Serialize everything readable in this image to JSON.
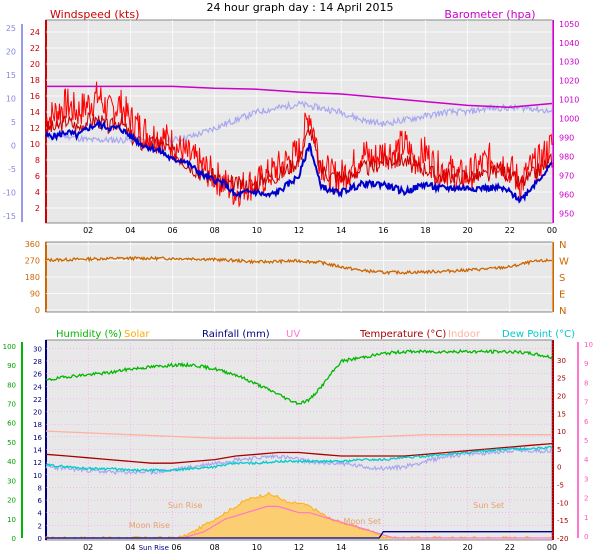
{
  "header": {
    "title": "24 hour graph day : 14 April 2015"
  },
  "colors": {
    "windspeed": "#cc0000",
    "gust": "#ff0000",
    "avg": "#0000cc",
    "barometer": "#cc00cc",
    "temp_light": "#a8a8f0",
    "direction": "#cc6600",
    "humidity": "#00b800",
    "solar": "#ffaa00",
    "rainfall": "#000080",
    "uv": "#ff77cc",
    "temperature": "#aa0000",
    "indoor": "#ffb0a0",
    "dewpoint": "#00cccc",
    "panel_bg": "#e8e8e8",
    "grid": "#ff88ff"
  },
  "chart_data": [
    {
      "type": "line",
      "panel": "wind",
      "left_label": "Windspeed (kts)",
      "right_label": "Barometer (hpa)",
      "x_ticks": [
        "02",
        "04",
        "06",
        "08",
        "10",
        "12",
        "14",
        "16",
        "18",
        "20",
        "22",
        "00"
      ],
      "left_ticks": [
        "2",
        "4",
        "6",
        "8",
        "10",
        "12",
        "14",
        "16",
        "18",
        "20",
        "22",
        "24"
      ],
      "outer_left_ticks": [
        "25",
        "20",
        "15",
        "10",
        "5",
        "0",
        "-5",
        "-10",
        "-15"
      ],
      "right_ticks": [
        "950",
        "960",
        "970",
        "980",
        "990",
        "1000",
        "1010",
        "1020",
        "1030",
        "1040",
        "1050"
      ],
      "ylim_left": [
        1,
        25
      ],
      "ylim_right": [
        945,
        1052
      ],
      "xlim": [
        0,
        24
      ],
      "series": [
        {
          "key": "gust",
          "x": [
            0,
            0.5,
            1,
            1.5,
            2,
            2.5,
            3,
            3.5,
            4,
            4.5,
            5,
            5.5,
            6,
            6.5,
            7,
            7.5,
            8,
            8.5,
            9,
            9.5,
            10,
            10.5,
            11,
            11.5,
            12,
            12.5,
            13,
            13.5,
            14,
            14.5,
            15,
            15.5,
            16,
            16.5,
            17,
            17.5,
            18,
            18.5,
            19,
            19.5,
            20,
            20.5,
            21,
            21.5,
            22,
            22.5,
            23,
            23.5,
            24
          ],
          "y": [
            13,
            14,
            15,
            14,
            15,
            16,
            14,
            15,
            13,
            12,
            11,
            11,
            10,
            9,
            8,
            7,
            6,
            5,
            4,
            5,
            5,
            6,
            7,
            8,
            9,
            14,
            8,
            6,
            6,
            7,
            9,
            8,
            9,
            9,
            10,
            8,
            9,
            7,
            7,
            6,
            6,
            7,
            8,
            8,
            7,
            5,
            7,
            8,
            10
          ]
        },
        {
          "key": "windspeed",
          "x": [
            0,
            0.5,
            1,
            1.5,
            2,
            2.5,
            3,
            3.5,
            4,
            4.5,
            5,
            5.5,
            6,
            6.5,
            7,
            7.5,
            8,
            8.5,
            9,
            9.5,
            10,
            10.5,
            11,
            11.5,
            12,
            12.5,
            13,
            13.5,
            14,
            14.5,
            15,
            15.5,
            16,
            16.5,
            17,
            17.5,
            18,
            18.5,
            19,
            19.5,
            20,
            20.5,
            21,
            21.5,
            22,
            22.5,
            23,
            23.5,
            24
          ],
          "y": [
            12,
            12,
            13,
            12,
            13,
            13,
            12,
            13,
            11,
            10,
            10,
            10,
            9,
            8,
            7,
            6,
            6,
            5,
            5,
            5,
            5,
            6,
            6,
            7,
            8,
            12,
            7,
            6,
            6,
            6,
            7,
            7,
            8,
            8,
            8,
            7,
            7,
            6,
            6,
            6,
            6,
            6,
            6,
            7,
            6,
            5,
            6,
            7,
            8
          ]
        },
        {
          "key": "avg",
          "x": [
            0,
            0.5,
            1,
            1.5,
            2,
            2.5,
            3,
            3.5,
            4,
            4.5,
            5,
            5.5,
            6,
            6.5,
            7,
            7.5,
            8,
            8.5,
            9,
            9.5,
            10,
            10.5,
            11,
            11.5,
            12,
            12.5,
            13,
            13.5,
            14,
            14.5,
            15,
            15.5,
            16,
            16.5,
            17,
            17.5,
            18,
            18.5,
            19,
            19.5,
            20,
            20.5,
            21,
            21.5,
            22,
            22.5,
            23,
            23.5,
            24
          ],
          "y": [
            11,
            11,
            11.5,
            11,
            12,
            12.5,
            12,
            12,
            11,
            10,
            9.5,
            9,
            8,
            8,
            7,
            6,
            5.5,
            5,
            3.5,
            4,
            4,
            3.5,
            4,
            5,
            6,
            10,
            5,
            4,
            4,
            4.5,
            5,
            5,
            5,
            4.5,
            4,
            4.5,
            5,
            4.5,
            4.5,
            4.5,
            4.5,
            4.5,
            4.5,
            4.5,
            4,
            3,
            4.5,
            6,
            7.5
          ]
        },
        {
          "key": "barometer",
          "x": [
            0,
            2,
            4,
            6,
            8,
            10,
            12,
            14,
            16,
            18,
            20,
            22,
            23,
            24
          ],
          "y": [
            1017,
            1017,
            1017,
            1017,
            1016,
            1015.5,
            1014,
            1013,
            1011,
            1009,
            1007,
            1006,
            1007,
            1008
          ]
        },
        {
          "key": "temp_light",
          "x": [
            0,
            1,
            2,
            3,
            4,
            5,
            6,
            7,
            8,
            9,
            10,
            11,
            12,
            13,
            14,
            15,
            16,
            17,
            18,
            19,
            20,
            21,
            22,
            23,
            24
          ],
          "y": [
            11,
            11,
            10.5,
            10.5,
            10.5,
            10.5,
            10.5,
            11,
            12,
            13,
            14,
            14.5,
            15,
            14.5,
            14,
            13,
            12.5,
            13,
            13.5,
            14,
            14,
            14.5,
            14.5,
            14.5,
            14
          ]
        }
      ]
    },
    {
      "type": "line",
      "panel": "direction",
      "left_ticks": [
        "0",
        "90",
        "180",
        "270",
        "360"
      ],
      "right_labels": [
        "N",
        "W",
        "S",
        "E",
        "N"
      ],
      "ylim": [
        0,
        360
      ],
      "xlim": [
        0,
        24
      ],
      "series": [
        {
          "key": "direction",
          "x": [
            0,
            1,
            2,
            3,
            4,
            5,
            6,
            7,
            8,
            9,
            10,
            11,
            12,
            13,
            14,
            15,
            16,
            17,
            18,
            19,
            20,
            21,
            22,
            23,
            24
          ],
          "y": [
            272,
            275,
            278,
            281,
            282,
            282,
            281,
            280,
            275,
            270,
            262,
            265,
            268,
            260,
            235,
            215,
            205,
            205,
            208,
            212,
            218,
            225,
            235,
            262,
            272
          ]
        }
      ]
    },
    {
      "type": "line",
      "panel": "temperature",
      "legend": [
        "Humidity (%)",
        "Solar",
        "Rainfall (mm)",
        "UV",
        "Temperature (°C)",
        "Indoor",
        "Dew Point (°C)"
      ],
      "x_ticks": [
        "02",
        "04",
        "Sun Rise",
        "06",
        "08",
        "10",
        "12",
        "14",
        "16",
        "18",
        "20",
        "22",
        "00"
      ],
      "outer_left_ticks": [
        "0",
        "10",
        "20",
        "30",
        "40",
        "50",
        "60",
        "70",
        "80",
        "90",
        "100"
      ],
      "left_ticks": [
        "0",
        "2",
        "4",
        "6",
        "8",
        "10",
        "12",
        "14",
        "16",
        "18",
        "20",
        "22",
        "24",
        "26",
        "28",
        "30"
      ],
      "right_ticks": [
        "30",
        "25",
        "20",
        "15",
        "10",
        "5",
        "0",
        "-5",
        "-10",
        "-15",
        "-20"
      ],
      "outer_right_ticks": [
        "10",
        "9",
        "8",
        "7",
        "6",
        "5",
        "4",
        "3",
        "2",
        "1",
        "0"
      ],
      "ylim_left": [
        0,
        31
      ],
      "ylim_temp": [
        -20,
        35
      ],
      "ylim_humidity": [
        0,
        102
      ],
      "xlim": [
        0,
        24
      ],
      "annotations": [
        "Sun Rise",
        "Moon Rise",
        "Sun Set",
        "Moon Set"
      ],
      "series": [
        {
          "key": "humidity",
          "x": [
            0,
            1,
            2,
            3,
            4,
            5,
            6,
            7,
            8,
            9,
            10,
            11,
            11.5,
            12,
            12.5,
            13,
            13.5,
            14,
            15,
            16,
            17,
            18,
            19,
            20,
            21,
            22,
            23,
            24
          ],
          "y": [
            82,
            84,
            85,
            86,
            88,
            89,
            90,
            90,
            88,
            85,
            80,
            75,
            72,
            70,
            72,
            78,
            85,
            92,
            94,
            96,
            97,
            97,
            97,
            97,
            97,
            97,
            96,
            94
          ]
        },
        {
          "key": "indoor",
          "x": [
            0,
            2,
            4,
            6,
            8,
            10,
            12,
            14,
            16,
            18,
            20,
            22,
            24
          ],
          "y": [
            10,
            9.5,
            9,
            8.5,
            8,
            8,
            8,
            8,
            8.5,
            9,
            9,
            9,
            9
          ]
        },
        {
          "key": "temperature",
          "x": [
            0,
            1,
            2,
            3,
            4,
            5,
            6,
            7,
            8,
            9,
            10,
            11,
            12,
            13,
            14,
            15,
            16,
            17,
            18,
            19,
            20,
            21,
            22,
            23,
            24
          ],
          "y": [
            3.5,
            3,
            2.5,
            2,
            1.5,
            1,
            1,
            1.5,
            2,
            3,
            3.5,
            4,
            4,
            3.5,
            3,
            3,
            3,
            3,
            3.5,
            4,
            4.5,
            5,
            5.5,
            6,
            6.5
          ]
        },
        {
          "key": "dewpoint",
          "x": [
            0,
            1,
            2,
            3,
            4,
            5,
            6,
            7,
            8,
            9,
            10,
            11,
            12,
            13,
            14,
            15,
            16,
            17,
            18,
            19,
            20,
            21,
            22,
            23,
            24
          ],
          "y": [
            0.5,
            0,
            -0.5,
            -0.5,
            -1,
            -1,
            -1,
            -0.5,
            0,
            1,
            1,
            1.5,
            1.5,
            1.5,
            1.5,
            2,
            2,
            2.5,
            3,
            3.5,
            4,
            4.5,
            5,
            5,
            5.5
          ]
        },
        {
          "key": "temp_light",
          "x": [
            0,
            1,
            2,
            3,
            4,
            5,
            6,
            7,
            8,
            9,
            10,
            11,
            12,
            13,
            14,
            15,
            16,
            17,
            18,
            19,
            20,
            21,
            22,
            23,
            24
          ],
          "y": [
            0,
            -0.5,
            -1,
            -1.5,
            -1.5,
            -1.5,
            -1,
            0,
            1,
            2,
            2.5,
            3,
            2,
            1,
            1,
            0,
            -0.5,
            0,
            1.5,
            3,
            3.5,
            4,
            4.5,
            4.5,
            4.5
          ]
        },
        {
          "key": "solar",
          "x": [
            0,
            6,
            6.5,
            7,
            7.5,
            8,
            8.5,
            9,
            9.5,
            10,
            10.5,
            11,
            11.5,
            12,
            12.5,
            13,
            13.5,
            14,
            14.5,
            15,
            15.5,
            16,
            16.5,
            24
          ],
          "y": [
            0,
            0,
            0.2,
            1,
            2,
            3,
            4,
            5,
            6,
            6.5,
            7,
            6.5,
            5.5,
            5.5,
            5,
            4,
            3,
            2.5,
            2,
            1.5,
            1,
            0.3,
            0,
            0
          ]
        },
        {
          "key": "uv",
          "x": [
            0,
            6.5,
            7,
            7.5,
            8,
            8.5,
            9,
            9.5,
            10,
            10.5,
            11,
            11.5,
            12,
            12.5,
            13,
            13.5,
            14,
            14.5,
            15,
            15.5,
            16,
            16.5,
            24
          ],
          "y": [
            0,
            0,
            0.5,
            1,
            2,
            3,
            3.5,
            4,
            4.5,
            5,
            5,
            4.5,
            4,
            4,
            3.5,
            3,
            2.5,
            2,
            1.5,
            1,
            0.5,
            0,
            0
          ]
        },
        {
          "key": "rainfall",
          "x": [
            0,
            15.8,
            16,
            16.2,
            24
          ],
          "y": [
            0,
            0,
            1,
            1,
            1
          ]
        }
      ]
    }
  ]
}
